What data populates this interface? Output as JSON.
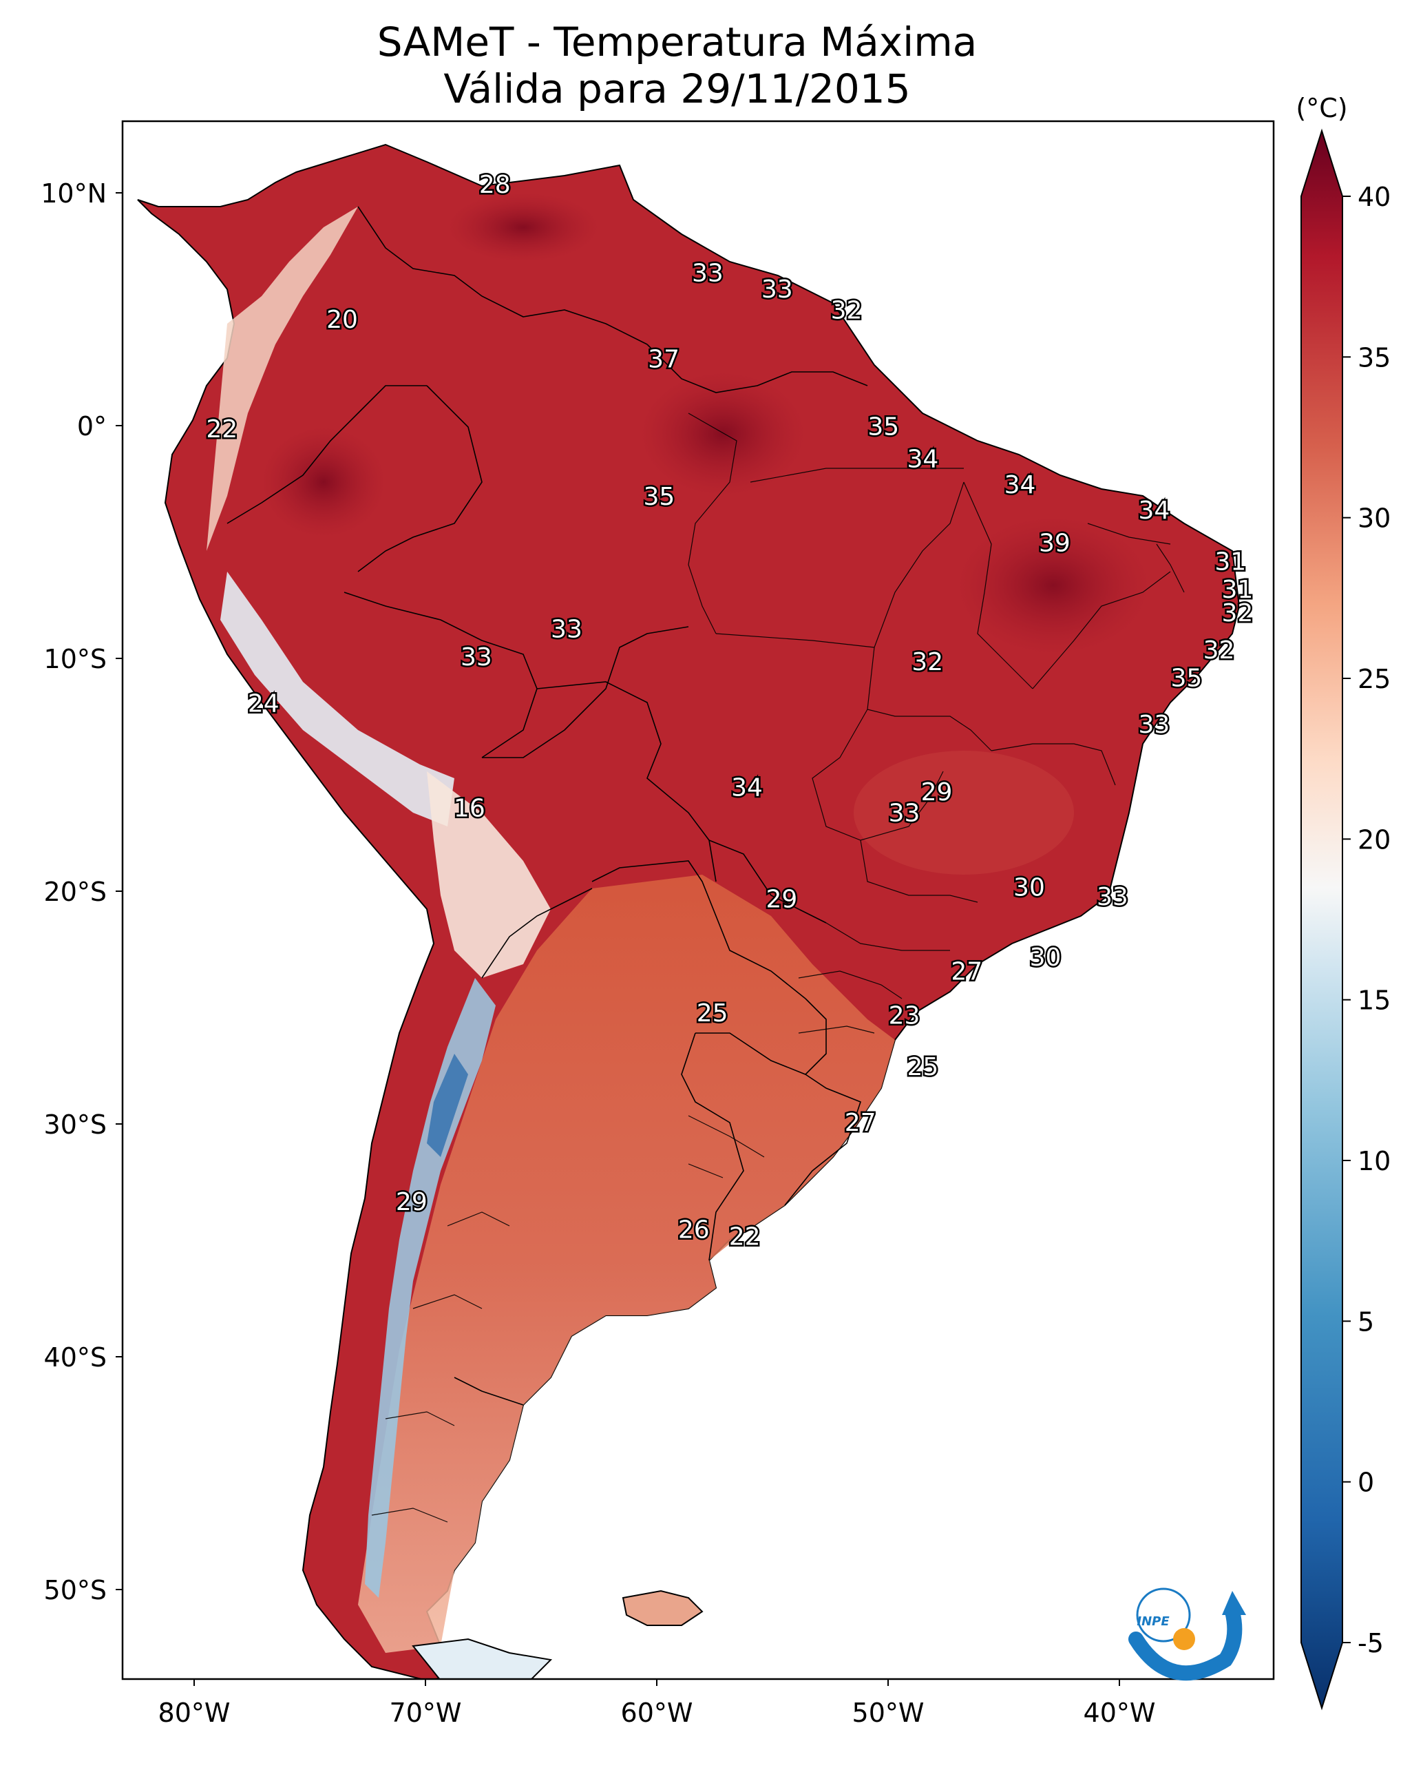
{
  "title_line1": "SAMeT - Temperatura Máxima",
  "title_line2": "Válida para 29/11/2015",
  "colorbar": {
    "unit": "(°C)",
    "min": -5,
    "max": 40,
    "ticks": [
      "40",
      "35",
      "30",
      "25",
      "20",
      "15",
      "10",
      "5",
      "0",
      "-5"
    ]
  },
  "axes": {
    "lat_labels": [
      "10°N",
      "0°",
      "10°S",
      "20°S",
      "30°S",
      "40°S",
      "50°S"
    ],
    "lon_labels": [
      "80°W",
      "70°W",
      "60°W",
      "50°W",
      "40°W"
    ]
  },
  "logo": {
    "text": "INPE",
    "colors": [
      "#1a7bc4",
      "#f4a020"
    ]
  },
  "stations": [
    {
      "lon": -67.0,
      "lat": 10.3,
      "value": "28"
    },
    {
      "lon": -57.8,
      "lat": 6.5,
      "value": "33"
    },
    {
      "lon": -54.8,
      "lat": 5.8,
      "value": "33"
    },
    {
      "lon": -51.8,
      "lat": 4.9,
      "value": "32"
    },
    {
      "lon": -73.6,
      "lat": 4.5,
      "value": "20"
    },
    {
      "lon": -59.7,
      "lat": 2.8,
      "value": "37"
    },
    {
      "lon": -78.8,
      "lat": -0.2,
      "value": "22"
    },
    {
      "lon": -50.2,
      "lat": -0.1,
      "value": "35"
    },
    {
      "lon": -48.5,
      "lat": -1.5,
      "value": "34"
    },
    {
      "lon": -59.9,
      "lat": -3.1,
      "value": "35"
    },
    {
      "lon": -44.3,
      "lat": -2.6,
      "value": "34"
    },
    {
      "lon": -38.5,
      "lat": -3.7,
      "value": "34"
    },
    {
      "lon": -42.8,
      "lat": -5.1,
      "value": "39"
    },
    {
      "lon": -35.2,
      "lat": -5.9,
      "value": "31"
    },
    {
      "lon": -34.9,
      "lat": -7.1,
      "value": "31"
    },
    {
      "lon": -34.9,
      "lat": -8.1,
      "value": "32"
    },
    {
      "lon": -63.9,
      "lat": -8.8,
      "value": "33"
    },
    {
      "lon": -67.8,
      "lat": -10.0,
      "value": "33"
    },
    {
      "lon": -35.7,
      "lat": -9.7,
      "value": "32"
    },
    {
      "lon": -48.3,
      "lat": -10.2,
      "value": "32"
    },
    {
      "lon": -37.1,
      "lat": -10.9,
      "value": "35"
    },
    {
      "lon": -77.0,
      "lat": -12.0,
      "value": "24"
    },
    {
      "lon": -38.5,
      "lat": -12.9,
      "value": "33"
    },
    {
      "lon": -56.1,
      "lat": -15.6,
      "value": "34"
    },
    {
      "lon": -47.9,
      "lat": -15.8,
      "value": "29"
    },
    {
      "lon": -49.3,
      "lat": -16.7,
      "value": "33"
    },
    {
      "lon": -68.1,
      "lat": -16.5,
      "value": "16"
    },
    {
      "lon": -43.9,
      "lat": -19.9,
      "value": "30"
    },
    {
      "lon": -54.6,
      "lat": -20.4,
      "value": "29"
    },
    {
      "lon": -40.3,
      "lat": -20.3,
      "value": "33"
    },
    {
      "lon": -43.2,
      "lat": -22.9,
      "value": "30"
    },
    {
      "lon": -46.6,
      "lat": -23.5,
      "value": "27"
    },
    {
      "lon": -57.6,
      "lat": -25.3,
      "value": "25"
    },
    {
      "lon": -49.3,
      "lat": -25.4,
      "value": "23"
    },
    {
      "lon": -48.5,
      "lat": -27.6,
      "value": "25"
    },
    {
      "lon": -51.2,
      "lat": -30.0,
      "value": "27"
    },
    {
      "lon": -70.6,
      "lat": -33.4,
      "value": "29"
    },
    {
      "lon": -58.4,
      "lat": -34.6,
      "value": "26"
    },
    {
      "lon": -56.2,
      "lat": -34.9,
      "value": "22"
    }
  ]
}
